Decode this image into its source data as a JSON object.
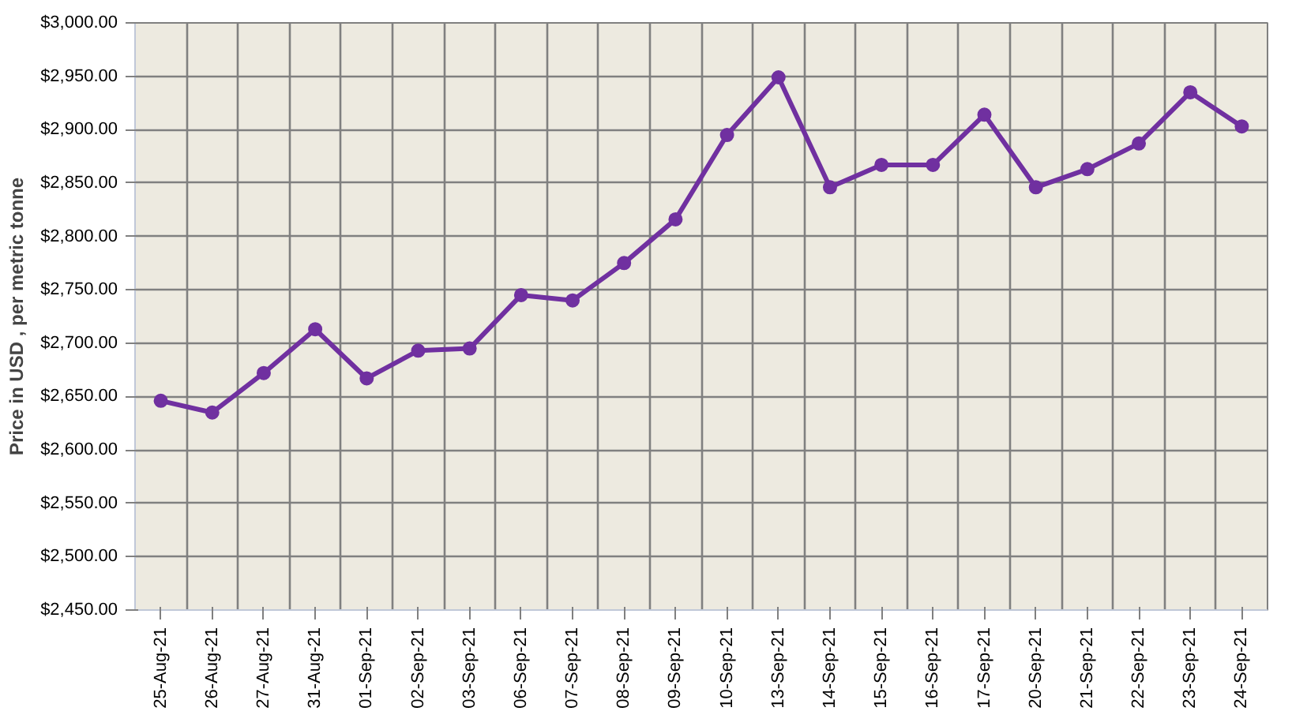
{
  "chart_data": {
    "type": "line",
    "ylabel": "Price in USD , per metric tonne",
    "categories": [
      "25-Aug-21",
      "26-Aug-21",
      "27-Aug-21",
      "31-Aug-21",
      "01-Sep-21",
      "02-Sep-21",
      "03-Sep-21",
      "06-Sep-21",
      "07-Sep-21",
      "08-Sep-21",
      "09-Sep-21",
      "10-Sep-21",
      "13-Sep-21",
      "14-Sep-21",
      "15-Sep-21",
      "16-Sep-21",
      "17-Sep-21",
      "20-Sep-21",
      "21-Sep-21",
      "22-Sep-21",
      "23-Sep-21",
      "24-Sep-21"
    ],
    "series": [
      {
        "color": "#7030a0",
        "values": [
          2646,
          2635,
          2672,
          2713,
          2667,
          2693,
          2695,
          2745,
          2740,
          2775,
          2816,
          2895,
          2949,
          2846,
          2867,
          2867,
          2914,
          2846,
          2863,
          2887,
          2935,
          2903
        ]
      }
    ],
    "ylim": [
      2450,
      3000
    ],
    "yticks": [
      {
        "value": 2450,
        "label": "$2,450.00"
      },
      {
        "value": 2500,
        "label": "$2,500.00"
      },
      {
        "value": 2550,
        "label": "$2,550.00"
      },
      {
        "value": 2600,
        "label": "$2,600.00"
      },
      {
        "value": 2650,
        "label": "$2,650.00"
      },
      {
        "value": 2700,
        "label": "$2,700.00"
      },
      {
        "value": 2750,
        "label": "$2,750.00"
      },
      {
        "value": 2800,
        "label": "$2,800.00"
      },
      {
        "value": 2850,
        "label": "$2,850.00"
      },
      {
        "value": 2900,
        "label": "$2,900.00"
      },
      {
        "value": 2950,
        "label": "$2,950.00"
      },
      {
        "value": 3000,
        "label": "$3,000.00"
      }
    ],
    "grid": true,
    "marker": "circle",
    "line_style": "solid"
  }
}
